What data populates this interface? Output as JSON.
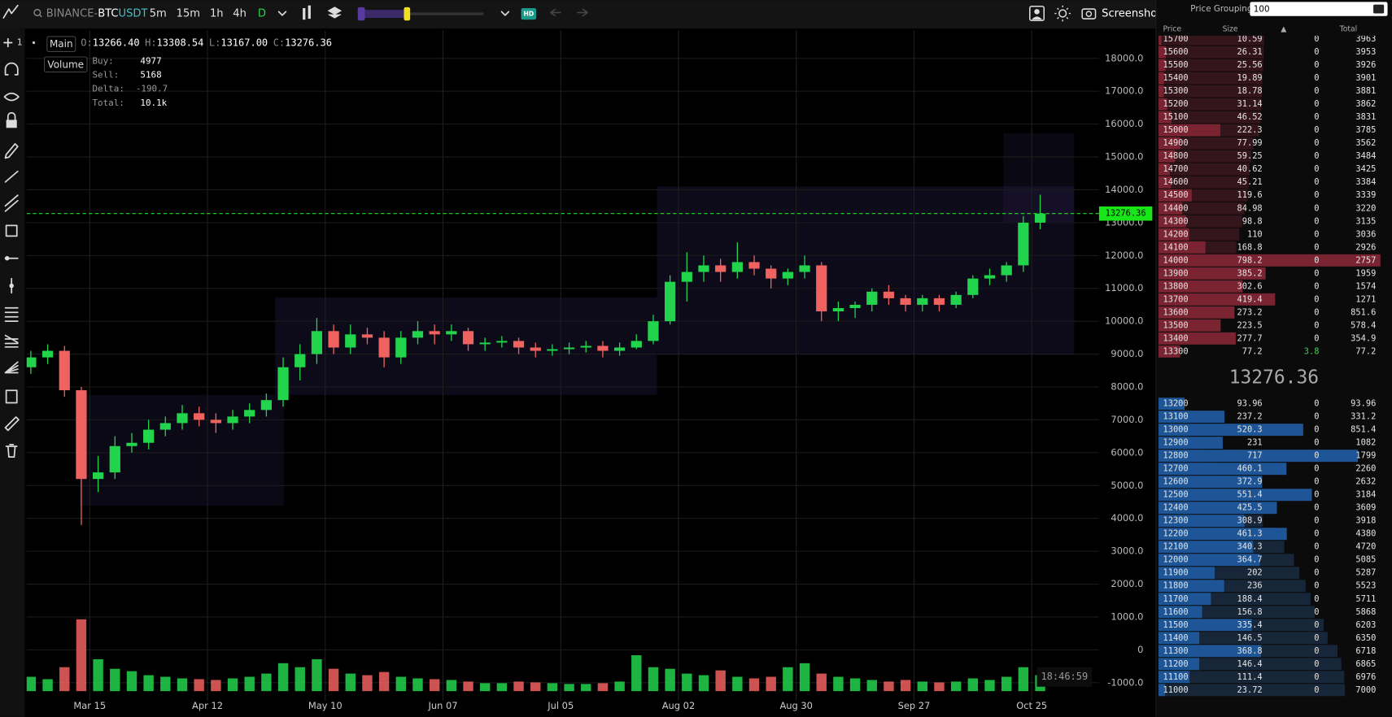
{
  "toolbar": {
    "symbol": [
      "BINANCE-",
      "BTC",
      "USDT"
    ],
    "intervals": [
      "5m",
      "15m",
      "1h",
      "4h",
      "D"
    ],
    "active_interval": 4,
    "hd": "HD",
    "screenshot": "Screenshot"
  },
  "left_toolbar": {
    "crosshair_badge": "1"
  },
  "legend": {
    "layers": [
      "Main",
      "Volume"
    ],
    "ohlc": [
      {
        "label": "O:",
        "value": "13266.40"
      },
      {
        "label": "H:",
        "value": "13308.54"
      },
      {
        "label": "L:",
        "value": "13167.00"
      },
      {
        "label": "C:",
        "value": "13276.36"
      }
    ],
    "stats": [
      {
        "label": "Buy:",
        "value": 4977
      },
      {
        "label": "Sell:",
        "value": 5168
      },
      {
        "label": "Delta:",
        "value": -190.7
      },
      {
        "label": "Total:",
        "value": "10.1k"
      }
    ]
  },
  "chart_data": {
    "type": "candlestick",
    "x": [
      -14,
      -10,
      -6,
      -2,
      2,
      6,
      10,
      14,
      18,
      22,
      26,
      30,
      34,
      38,
      42,
      46,
      50,
      54,
      58,
      62,
      66,
      70,
      74,
      78,
      82,
      86,
      90,
      94,
      98,
      102,
      106,
      110,
      114,
      118,
      122,
      126,
      130,
      134,
      138,
      142,
      146,
      150,
      154,
      158,
      162,
      166,
      170,
      174,
      178,
      182,
      186,
      190,
      194,
      198,
      202,
      206,
      210,
      214,
      218,
      222,
      226
    ],
    "open": [
      8600,
      8900,
      9100,
      7900,
      5200,
      5400,
      6200,
      6300,
      6700,
      6900,
      7200,
      7000,
      6900,
      7100,
      7300,
      7600,
      8600,
      9000,
      9700,
      9200,
      9600,
      9500,
      8900,
      9500,
      9700,
      9600,
      9700,
      9300,
      9350,
      9400,
      9200,
      9100,
      9150,
      9200,
      9250,
      9100,
      9200,
      9400,
      10000,
      11200,
      11500,
      11700,
      11500,
      11800,
      11600,
      11300,
      11500,
      11700,
      10300,
      10400,
      10500,
      10900,
      10700,
      10500,
      10700,
      10500,
      10800,
      11300,
      11400,
      11700,
      13000
    ],
    "high": [
      9100,
      9300,
      9250,
      8000,
      5900,
      6500,
      6600,
      7000,
      7100,
      7450,
      7400,
      7200,
      7300,
      7500,
      7800,
      8900,
      9300,
      10100,
      9900,
      9900,
      9800,
      9700,
      9700,
      10000,
      9900,
      9900,
      9800,
      9500,
      9550,
      9500,
      9350,
      9300,
      9350,
      9400,
      9400,
      9350,
      9600,
      10200,
      11400,
      12100,
      12000,
      11900,
      12400,
      12000,
      11700,
      11600,
      12000,
      11800,
      10600,
      10600,
      11000,
      11100,
      10800,
      10800,
      10800,
      10900,
      11400,
      11600,
      11800,
      13200,
      13850
    ],
    "low": [
      8400,
      8700,
      7700,
      3800,
      4800,
      5200,
      6000,
      6100,
      6500,
      6700,
      6800,
      6600,
      6700,
      6900,
      7100,
      7400,
      8200,
      8700,
      9000,
      9000,
      9300,
      8600,
      8700,
      9300,
      9300,
      9400,
      9100,
      9100,
      9200,
      9000,
      8900,
      8950,
      9000,
      9050,
      8900,
      8950,
      9150,
      9300,
      9900,
      10600,
      11200,
      11200,
      11300,
      11400,
      11000,
      11100,
      11300,
      10000,
      10000,
      10100,
      10300,
      10500,
      10300,
      10300,
      10300,
      10400,
      10700,
      11100,
      11200,
      11500,
      12800
    ],
    "close": [
      8900,
      9100,
      7900,
      5200,
      5400,
      6200,
      6300,
      6700,
      6900,
      7200,
      7000,
      6900,
      7100,
      7300,
      7600,
      8600,
      9000,
      9700,
      9200,
      9600,
      9500,
      8900,
      9500,
      9700,
      9600,
      9700,
      9300,
      9350,
      9400,
      9200,
      9100,
      9150,
      9200,
      9250,
      9100,
      9200,
      9400,
      10000,
      11200,
      11500,
      11700,
      11500,
      11800,
      11600,
      11300,
      11500,
      11700,
      10300,
      10400,
      10500,
      10900,
      10700,
      10500,
      10700,
      10500,
      10800,
      11300,
      11400,
      11700,
      13000,
      13276.36
    ],
    "volume": [
      18,
      15,
      30,
      90,
      40,
      28,
      25,
      20,
      18,
      16,
      15,
      14,
      16,
      18,
      22,
      35,
      30,
      40,
      28,
      22,
      20,
      24,
      18,
      16,
      15,
      14,
      12,
      10,
      10,
      12,
      11,
      10,
      9,
      9,
      10,
      12,
      45,
      30,
      28,
      22,
      20,
      26,
      18,
      16,
      18,
      30,
      35,
      22,
      18,
      16,
      14,
      12,
      14,
      12,
      11,
      12,
      16,
      14,
      18,
      30,
      20
    ],
    "volume_ylim": [
      0,
      200
    ],
    "up_color": "#22d34c",
    "down_color": "#f0625f",
    "xlim": [
      -15,
      240
    ],
    "xticks": [
      {
        "value": 0,
        "label": "Mar 15"
      },
      {
        "value": 28,
        "label": "Apr 12"
      },
      {
        "value": 56,
        "label": "May 10"
      },
      {
        "value": 84,
        "label": "Jun 07"
      },
      {
        "value": 112,
        "label": "Jul 05"
      },
      {
        "value": 140,
        "label": "Aug 02"
      },
      {
        "value": 168,
        "label": "Aug 30"
      },
      {
        "value": 196,
        "label": "Sep 27"
      },
      {
        "value": 224,
        "label": "Oct 25"
      }
    ],
    "ylim": [
      -1500,
      18800
    ],
    "yticks": [
      {
        "value": 18000,
        "label": "18000.0"
      },
      {
        "value": 17000,
        "label": "17000.0"
      },
      {
        "value": 16000,
        "label": "16000.0"
      },
      {
        "value": 15000,
        "label": "15000.0"
      },
      {
        "value": 14000,
        "label": "14000.0"
      },
      {
        "value": 13000,
        "label": "13000.0"
      },
      {
        "value": 12000,
        "label": "12000.0"
      },
      {
        "value": 11000,
        "label": "11000.0"
      },
      {
        "value": 10000,
        "label": "10000.0"
      },
      {
        "value": 9000,
        "label": "9000.0"
      },
      {
        "value": 8000,
        "label": "8000.0"
      },
      {
        "value": 7000,
        "label": "7000.0"
      },
      {
        "value": 6000,
        "label": "6000.0"
      },
      {
        "value": 5000,
        "label": "5000.0"
      },
      {
        "value": 4000,
        "label": "4000.0"
      },
      {
        "value": 3000,
        "label": "3000.0"
      },
      {
        "value": 2000,
        "label": "2000.0"
      },
      {
        "value": 1000,
        "label": "1000.0"
      },
      0,
      {
        "value": -1000,
        "label": "-1000.0"
      }
    ],
    "grid": true,
    "last_price": 13276.36,
    "time": "18:46:59"
  },
  "order_book": {
    "grouping_label": "Price Grouping",
    "grouping": "100",
    "columns": [
      "Price",
      "Size",
      "▲",
      "Total"
    ],
    "asks": [
      [
        15700,
        10.59,
        0,
        3963
      ],
      [
        15600,
        26.31,
        0,
        3953
      ],
      [
        15500,
        25.56,
        0,
        3926
      ],
      [
        15400,
        19.89,
        0,
        3901
      ],
      [
        15300,
        18.78,
        0,
        3881
      ],
      [
        15200,
        31.14,
        0,
        3862
      ],
      [
        15100,
        46.52,
        0,
        3831
      ],
      [
        15000,
        222.3,
        0,
        3785
      ],
      [
        14900,
        77.99,
        0,
        3562
      ],
      [
        14800,
        59.25,
        0,
        3484
      ],
      [
        14700,
        40.62,
        0,
        3425
      ],
      [
        14600,
        45.21,
        0,
        3384
      ],
      [
        14500,
        119.6,
        0,
        3339
      ],
      [
        14400,
        84.98,
        0,
        3220
      ],
      [
        14300,
        98.8,
        0,
        3135
      ],
      [
        14200,
        110,
        0,
        3036
      ],
      [
        14100,
        168.8,
        0,
        2926
      ],
      [
        14000,
        798.2,
        0,
        2757
      ],
      [
        13900,
        385.2,
        0,
        1959
      ],
      [
        13800,
        302.6,
        0,
        1574
      ],
      [
        13700,
        419.4,
        0,
        1271
      ],
      [
        13600,
        273.2,
        0,
        851.6
      ],
      [
        13500,
        223.5,
        0,
        578.4
      ],
      [
        13400,
        277.7,
        0,
        354.9
      ],
      [
        13300,
        77.2,
        3.8,
        77.2
      ]
    ],
    "bids": [
      [
        13200,
        93.96,
        0,
        93.96
      ],
      [
        13100,
        237.2,
        0,
        331.2
      ],
      [
        13000,
        520.3,
        0,
        851.4
      ],
      [
        12900,
        231,
        0,
        1082
      ],
      [
        12800,
        717,
        0,
        1799
      ],
      [
        12700,
        460.1,
        0,
        2260
      ],
      [
        12600,
        372.9,
        0,
        2632
      ],
      [
        12500,
        551.4,
        0,
        3184
      ],
      [
        12400,
        425.5,
        0,
        3609
      ],
      [
        12300,
        308.9,
        0,
        3918
      ],
      [
        12200,
        461.3,
        0,
        4380
      ],
      [
        12100,
        340.3,
        0,
        4720
      ],
      [
        12000,
        364.7,
        0,
        5085
      ],
      [
        11900,
        202,
        0,
        5287
      ],
      [
        11800,
        236,
        0,
        5523
      ],
      [
        11700,
        188.4,
        0,
        5711
      ],
      [
        11600,
        156.8,
        0,
        5868
      ],
      [
        11500,
        335.4,
        0,
        6203
      ],
      [
        11400,
        146.5,
        0,
        6350
      ],
      [
        11300,
        368.8,
        0,
        6718
      ],
      [
        11200,
        146.4,
        0,
        6865
      ],
      [
        11100,
        111.4,
        0,
        6976
      ],
      [
        11000,
        23.72,
        0,
        7000
      ]
    ],
    "last_price": 13276.36
  }
}
